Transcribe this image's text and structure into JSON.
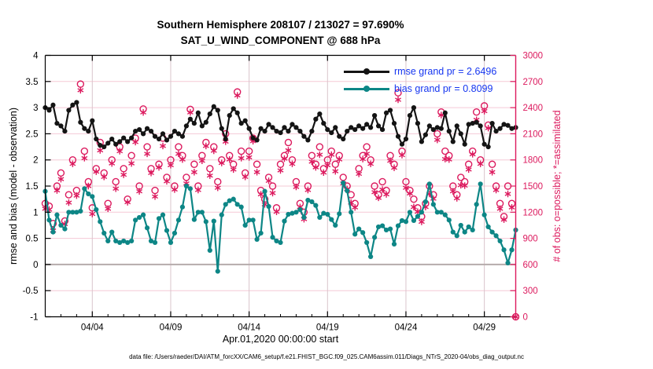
{
  "figure": {
    "title_line1": "Southern Hemisphere 208107 / 213027 = 97.690%",
    "title_line2": "SAT_U_WIND_COMPONENT @ 688 hPa",
    "xlabel": "Apr.01,2020 00:00:00 start",
    "ylabel_left": "rmse and bias (model - observation)",
    "ylabel_right": "# of obs: o=possible; *=assimilated",
    "caption": "data file: /Users/raeder/DAI/ATM_forcXX/CAM6_setup/f.e21.FHIST_BGC.f09_025.CAM6assim.011/Diags_NTrS_2020-04/obs_diag_output.nc",
    "legend": {
      "rmse_label": "rmse grand pr = 2.6496",
      "bias_label": "bias grand pr = 0.8099",
      "text_color": "#1535f0"
    },
    "colors": {
      "rmse": "#141414",
      "bias": "#0d8686",
      "obs": "#dc1a5e",
      "grid_horizontal": "#f5c9d6",
      "grid_vertical": "#d9c4cc",
      "zero_line": "#b5abab",
      "axis_left": "#000000",
      "axis_right": "#dc1a5e"
    }
  },
  "chart_data": {
    "type": "line",
    "title": "Southern Hemisphere 208107 / 213027 = 97.690% — SAT_U_WIND_COMPONENT @ 688 hPa",
    "xlabel": "Apr.01,2020 00:00:00 start",
    "ylabel_left": "rmse and bias (model - observation)",
    "ylabel_right": "# of obs: o=possible; *=assimilated",
    "xlim": [
      1,
      31
    ],
    "ylim_left": [
      -1,
      4
    ],
    "ylim_right": [
      0,
      3000
    ],
    "yticks_left": [
      -1,
      -0.5,
      0,
      0.5,
      1,
      1.5,
      2,
      2.5,
      3,
      3.5,
      4
    ],
    "yticks_right": [
      0,
      300,
      600,
      900,
      1200,
      1500,
      1800,
      2100,
      2400,
      2700,
      3000
    ],
    "x_ticks": [
      {
        "v": 4,
        "label": "04/04"
      },
      {
        "v": 9,
        "label": "04/09"
      },
      {
        "v": 14,
        "label": "04/14"
      },
      {
        "v": 19,
        "label": "04/19"
      },
      {
        "v": 24,
        "label": "04/24"
      },
      {
        "v": 29,
        "label": "04/29"
      }
    ],
    "x_minor_step": 1,
    "grid": true,
    "legend_position": "top-right-inside",
    "zero_line": 0,
    "x": [
      1,
      1.25,
      1.5,
      1.75,
      2,
      2.25,
      2.5,
      2.75,
      3,
      3.25,
      3.5,
      3.75,
      4,
      4.25,
      4.5,
      4.75,
      5,
      5.25,
      5.5,
      5.75,
      6,
      6.25,
      6.5,
      6.75,
      7,
      7.25,
      7.5,
      7.75,
      8,
      8.25,
      8.5,
      8.75,
      9,
      9.25,
      9.5,
      9.75,
      10,
      10.25,
      10.5,
      10.75,
      11,
      11.25,
      11.5,
      11.75,
      12,
      12.25,
      12.5,
      12.75,
      13,
      13.25,
      13.5,
      13.75,
      14,
      14.25,
      14.5,
      14.75,
      15,
      15.25,
      15.5,
      15.75,
      16,
      16.25,
      16.5,
      16.75,
      17,
      17.25,
      17.5,
      17.75,
      18,
      18.25,
      18.5,
      18.75,
      19,
      19.25,
      19.5,
      19.75,
      20,
      20.25,
      20.5,
      20.75,
      21,
      21.25,
      21.5,
      21.75,
      22,
      22.25,
      22.5,
      22.75,
      23,
      23.25,
      23.5,
      23.75,
      24,
      24.25,
      24.5,
      24.75,
      25,
      25.25,
      25.5,
      25.75,
      26,
      26.25,
      26.5,
      26.75,
      27,
      27.25,
      27.5,
      27.75,
      28,
      28.25,
      28.5,
      28.75,
      29,
      29.25,
      29.5,
      29.75,
      30,
      30.25,
      30.5,
      30.75,
      31
    ],
    "series": [
      {
        "name": "rmse",
        "legend": "rmse grand pr = 2.6496",
        "grand_pr": 2.6496,
        "axis": "left",
        "color": "#141414",
        "marker": "filled-circle",
        "values": [
          3.0,
          2.95,
          3.05,
          2.7,
          2.65,
          2.55,
          2.95,
          3.05,
          3.1,
          2.72,
          2.6,
          2.55,
          2.75,
          2.4,
          2.28,
          2.25,
          2.32,
          2.4,
          2.3,
          2.35,
          2.42,
          2.35,
          2.42,
          2.55,
          2.58,
          2.5,
          2.6,
          2.55,
          2.45,
          2.4,
          2.5,
          2.38,
          2.45,
          2.55,
          2.5,
          2.45,
          2.65,
          2.78,
          2.7,
          2.9,
          2.65,
          2.72,
          2.88,
          3.02,
          2.95,
          2.6,
          2.4,
          2.85,
          2.98,
          2.9,
          2.7,
          2.75,
          2.6,
          2.42,
          2.38,
          2.6,
          2.55,
          2.68,
          2.62,
          2.55,
          2.52,
          2.62,
          2.55,
          2.68,
          2.62,
          2.55,
          2.45,
          2.38,
          2.55,
          2.78,
          2.88,
          2.7,
          2.58,
          2.52,
          2.62,
          2.45,
          2.4,
          2.55,
          2.62,
          2.58,
          2.65,
          2.6,
          2.68,
          2.62,
          2.85,
          2.65,
          2.58,
          2.9,
          2.95,
          2.7,
          2.45,
          2.3,
          2.4,
          2.85,
          3.0,
          2.7,
          2.35,
          2.48,
          2.65,
          2.58,
          2.62,
          2.6,
          2.9,
          2.55,
          2.35,
          2.65,
          2.5,
          2.3,
          2.68,
          2.7,
          2.72,
          2.65,
          2.3,
          2.25,
          2.7,
          2.55,
          2.6,
          2.68,
          2.66,
          2.6,
          2.62
        ]
      },
      {
        "name": "bias",
        "legend": "bias grand pr = 0.8099",
        "grand_pr": 0.8099,
        "axis": "left",
        "color": "#0d8686",
        "marker": "filled-circle",
        "values": [
          1.4,
          0.85,
          0.62,
          0.95,
          0.75,
          0.68,
          1.0,
          1.0,
          1.0,
          1.02,
          1.45,
          1.35,
          1.3,
          1.05,
          0.82,
          0.6,
          0.45,
          0.62,
          0.45,
          0.42,
          0.45,
          0.42,
          0.45,
          0.85,
          0.9,
          0.95,
          0.7,
          0.45,
          0.42,
          0.88,
          0.95,
          0.65,
          0.42,
          0.6,
          0.85,
          1.1,
          1.5,
          1.45,
          0.86,
          1.0,
          1.0,
          0.82,
          0.27,
          0.83,
          -0.13,
          0.95,
          1.15,
          1.22,
          1.25,
          1.15,
          1.1,
          0.75,
          0.85,
          0.85,
          0.48,
          0.6,
          1.4,
          1.11,
          0.52,
          0.45,
          0.42,
          0.83,
          0.96,
          0.98,
          1.0,
          1.05,
          0.9,
          1.23,
          1.2,
          1.13,
          0.9,
          0.98,
          0.96,
          0.86,
          0.75,
          0.97,
          1.56,
          1.41,
          1.0,
          0.58,
          0.68,
          0.61,
          0.42,
          0.15,
          0.52,
          0.72,
          0.74,
          0.66,
          0.68,
          0.39,
          0.74,
          0.84,
          0.82,
          1.0,
          0.84,
          0.92,
          1.0,
          1.2,
          1.54,
          1.15,
          1.0,
          1.0,
          0.95,
          0.85,
          0.62,
          0.55,
          0.75,
          0.62,
          0.72,
          0.66,
          1.15,
          1.54,
          0.95,
          0.72,
          0.62,
          0.55,
          0.45,
          0.28,
          0.03,
          0.28,
          0.66
        ]
      },
      {
        "name": "possible",
        "axis": "right",
        "color": "#dc1a5e",
        "marker": "open-circle",
        "values": [
          1300,
          1270,
          1070,
          1500,
          1650,
          1100,
          1400,
          1800,
          1450,
          2670,
          1900,
          1550,
          1250,
          1700,
          2000,
          1650,
          1300,
          1800,
          1550,
          1950,
          1700,
          1350,
          1850,
          2050,
          1500,
          2385,
          1950,
          1700,
          1450,
          1750,
          2050,
          1600,
          1800,
          1500,
          1950,
          1850,
          1600,
          2380,
          1750,
          1500,
          1850,
          2000,
          1700,
          1950,
          1550,
          1800,
          2100,
          1850,
          1750,
          2580,
          1900,
          1650,
          1900,
          2050,
          1750,
          1450,
          1350,
          1600,
          1500,
          1250,
          1750,
          1850,
          2000,
          1800,
          1550,
          1300,
          1200,
          1500,
          1850,
          1750,
          1950,
          1700,
          1800,
          1900,
          1750,
          1850,
          1600,
          1500,
          1400,
          1300,
          1700,
          1850,
          1950,
          1800,
          1500,
          1400,
          1550,
          1450,
          1850,
          1750,
          2570,
          1900,
          1550,
          1450,
          1350,
          1250,
          1150,
          1300,
          1500,
          1400,
          2100,
          2350,
          1900,
          1850,
          1500,
          1400,
          1600,
          1550,
          1750,
          1900,
          2350,
          1800,
          2420,
          2200,
          1750,
          1500,
          1300,
          1150,
          1500,
          1300,
          0
        ]
      },
      {
        "name": "assimilated",
        "axis": "right",
        "color": "#dc1a5e",
        "marker": "asterisk",
        "values": [
          1240,
          1230,
          990,
          1450,
          1580,
          1065,
          1310,
          1755,
          1390,
          2600,
          1820,
          1500,
          1180,
          1665,
          1910,
          1605,
          1240,
          1760,
          1470,
          1900,
          1630,
          1315,
          1760,
          2005,
          1440,
          2345,
          1870,
          1650,
          1380,
          1715,
          1960,
          1555,
          1740,
          1460,
          1870,
          1805,
          1530,
          2345,
          1660,
          1455,
          1790,
          1960,
          1620,
          1905,
          1480,
          1765,
          2010,
          1805,
          1690,
          2540,
          1820,
          1605,
          1830,
          2015,
          1660,
          1405,
          1290,
          1560,
          1420,
          1205,
          1680,
          1815,
          1910,
          1755,
          1490,
          1260,
          1120,
          1455,
          1780,
          1715,
          1860,
          1655,
          1740,
          1860,
          1670,
          1805,
          1530,
          1465,
          1310,
          1255,
          1640,
          1810,
          1870,
          1755,
          1430,
          1365,
          1460,
          1405,
          1790,
          1710,
          2490,
          1855,
          1480,
          1415,
          1260,
          1205,
          1090,
          1260,
          1410,
          1355,
          2030,
          2315,
          1810,
          1805,
          1440,
          1360,
          1510,
          1505,
          1690,
          1865,
          2260,
          1755,
          2360,
          2165,
          1660,
          1455,
          1240,
          1115,
          1410,
          1255,
          0
        ]
      }
    ]
  }
}
